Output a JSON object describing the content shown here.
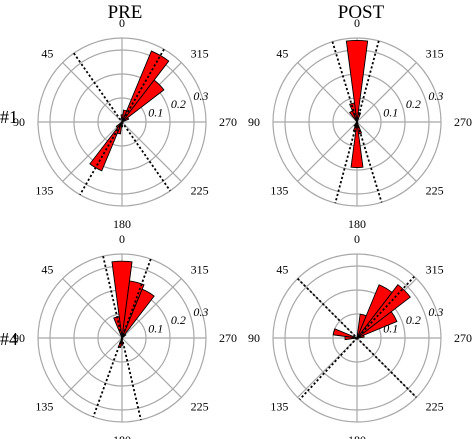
{
  "column_titles": [
    "PRE",
    "POST"
  ],
  "row_labels": [
    "#1",
    "#4"
  ],
  "angle_labels": [
    "0",
    "315",
    "270",
    "225",
    "180",
    "135",
    "90",
    "45"
  ],
  "ring_labels": [
    "0.1",
    "0.2",
    "0.3"
  ],
  "chart_data": [
    {
      "type": "polar-histogram",
      "column": "PRE",
      "row": "#1",
      "r_max": 0.35,
      "r_ticks": [
        0.1,
        0.2,
        0.3
      ],
      "bin_width_deg": 15,
      "petals": [
        {
          "angle": 330,
          "value": 0.32
        },
        {
          "angle": 315,
          "value": 0.22
        },
        {
          "angle": 300,
          "value": 0.03
        },
        {
          "angle": 345,
          "value": 0.05
        },
        {
          "angle": 0,
          "value": 0.03
        },
        {
          "angle": 180,
          "value": 0.02
        },
        {
          "angle": 165,
          "value": 0.05
        },
        {
          "angle": 150,
          "value": 0.22
        },
        {
          "angle": 135,
          "value": 0.03
        }
      ],
      "dotted_axes_deg": [
        330,
        35
      ]
    },
    {
      "type": "polar-histogram",
      "column": "POST",
      "row": "#1",
      "r_max": 0.35,
      "r_ticks": [
        0.1,
        0.2,
        0.3
      ],
      "bin_width_deg": 15,
      "petals": [
        {
          "angle": 0,
          "value": 0.34
        },
        {
          "angle": 345,
          "value": 0.04
        },
        {
          "angle": 15,
          "value": 0.08
        },
        {
          "angle": 30,
          "value": 0.05
        },
        {
          "angle": 180,
          "value": 0.19
        },
        {
          "angle": 195,
          "value": 0.05
        },
        {
          "angle": 165,
          "value": 0.04
        },
        {
          "angle": 150,
          "value": 0.02
        }
      ],
      "dotted_axes_deg": [
        345,
        17
      ]
    },
    {
      "type": "polar-histogram",
      "column": "PRE",
      "row": "#4",
      "r_max": 0.35,
      "r_ticks": [
        0.1,
        0.2,
        0.3
      ],
      "bin_width_deg": 15,
      "petals": [
        {
          "angle": 0,
          "value": 0.32
        },
        {
          "angle": 345,
          "value": 0.24
        },
        {
          "angle": 330,
          "value": 0.22
        },
        {
          "angle": 15,
          "value": 0.09
        },
        {
          "angle": 315,
          "value": 0.02
        },
        {
          "angle": 180,
          "value": 0.03
        },
        {
          "angle": 165,
          "value": 0.04
        }
      ],
      "dotted_axes_deg": [
        340,
        13
      ]
    },
    {
      "type": "polar-histogram",
      "column": "POST",
      "row": "#4",
      "r_max": 0.35,
      "r_ticks": [
        0.1,
        0.2,
        0.3
      ],
      "bin_width_deg": 15,
      "petals": [
        {
          "angle": 315,
          "value": 0.28
        },
        {
          "angle": 330,
          "value": 0.24
        },
        {
          "angle": 300,
          "value": 0.18
        },
        {
          "angle": 345,
          "value": 0.1
        },
        {
          "angle": 285,
          "value": 0.03
        },
        {
          "angle": 75,
          "value": 0.1
        },
        {
          "angle": 90,
          "value": 0.05
        }
      ],
      "dotted_axes_deg": [
        317,
        45
      ]
    }
  ]
}
